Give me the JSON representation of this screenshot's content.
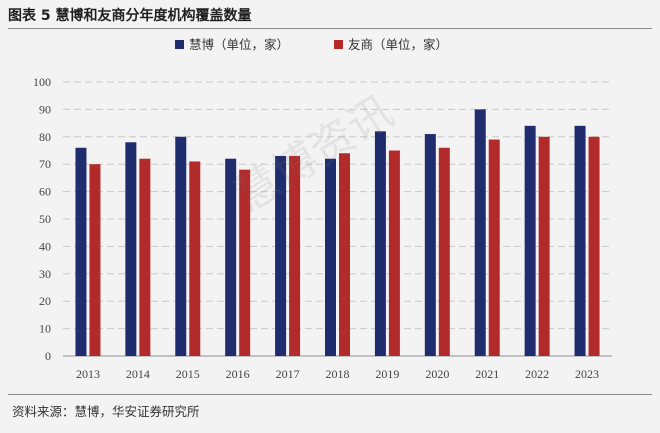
{
  "figure": {
    "title": "图表 5  慧博和友商分年度机构覆盖数量",
    "source": "资料来源：慧博，华安证券研究所",
    "watermark": "慧博资讯"
  },
  "chart_data": {
    "type": "bar",
    "categories": [
      "2013",
      "2014",
      "2015",
      "2016",
      "2017",
      "2018",
      "2019",
      "2020",
      "2021",
      "2022",
      "2023"
    ],
    "series": [
      {
        "name": "慧博（单位，家）",
        "color": "#1f2d6e",
        "values": [
          76,
          78,
          80,
          72,
          73,
          72,
          82,
          81,
          90,
          84,
          84
        ]
      },
      {
        "name": "友商（单位，家）",
        "color": "#b22a2a",
        "values": [
          70,
          72,
          71,
          68,
          73,
          74,
          75,
          76,
          79,
          80,
          80
        ]
      }
    ],
    "ylim": [
      0,
      100
    ],
    "yticks": [
      0,
      10,
      20,
      30,
      40,
      50,
      60,
      70,
      80,
      90,
      100
    ],
    "grid": true,
    "legend_position": "top-center",
    "xlabel": "",
    "ylabel": ""
  }
}
